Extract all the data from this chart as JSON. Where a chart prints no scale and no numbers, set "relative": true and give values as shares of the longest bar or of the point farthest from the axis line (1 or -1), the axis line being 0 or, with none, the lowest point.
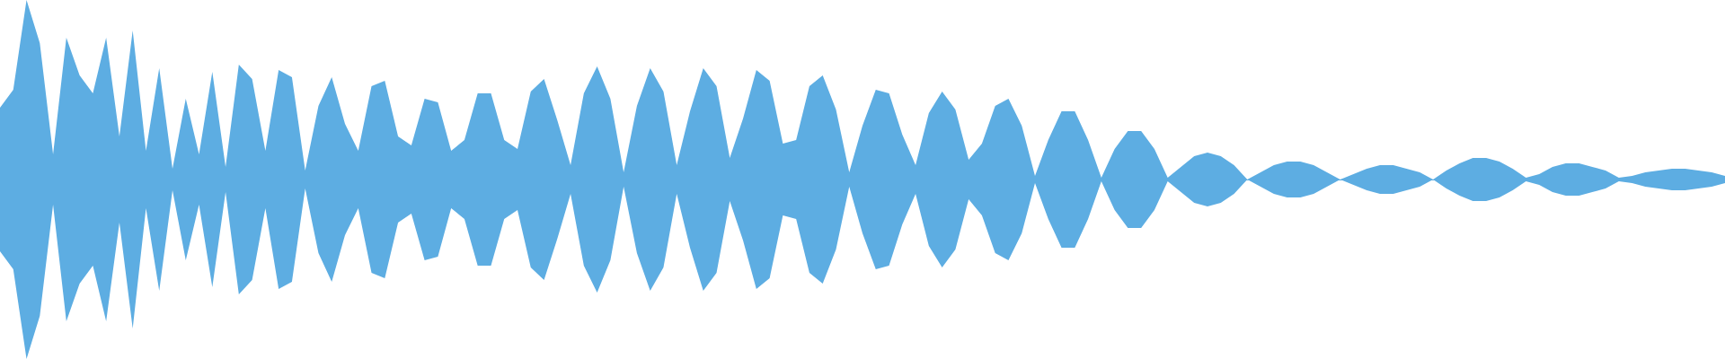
{
  "chart_data": {
    "type": "area",
    "relative": true,
    "ref_lines": [
      {
        "axis": "y",
        "value": 0,
        "color": "#5dade2"
      }
    ],
    "categories": [
      null,
      null,
      null,
      null,
      null,
      null,
      null,
      null,
      null,
      null,
      null,
      null,
      null,
      null,
      null,
      null,
      null,
      null,
      null,
      null,
      null,
      null,
      null,
      null,
      null,
      null,
      null,
      null,
      null,
      null,
      null,
      null,
      null,
      null,
      null,
      null,
      null,
      null,
      null,
      null,
      null,
      null,
      null,
      null,
      null,
      null,
      null,
      null,
      null,
      null,
      null,
      null,
      null,
      null,
      null,
      null,
      null,
      null,
      null,
      null,
      null,
      null,
      null,
      null,
      null,
      null,
      null,
      null,
      null,
      null,
      null,
      null,
      null,
      null,
      null,
      null,
      null,
      null,
      null,
      null,
      null,
      null,
      null,
      null,
      null,
      null,
      null,
      null,
      null,
      null,
      null,
      null,
      null,
      null,
      null,
      null,
      null,
      null,
      null,
      null,
      null,
      null,
      null,
      null,
      null,
      null,
      null,
      null,
      null,
      null,
      null,
      null,
      null,
      null,
      null,
      null,
      null,
      null,
      null,
      null,
      null,
      null,
      null,
      null,
      null,
      null,
      null,
      null,
      null,
      null,
      null
    ],
    "series": [
      {
        "color": "#5dade2",
        "values": [
          0.4,
          0.5,
          1,
          0.76,
          0.14,
          0.79,
          0.58,
          0.48,
          0.79,
          0.24,
          0.83,
          0.16,
          0.62,
          0.06,
          0.45,
          0.14,
          0.6,
          0.07,
          0.64,
          0.56,
          0.16,
          0.61,
          0.57,
          0.05,
          0.41,
          0.57,
          0.31,
          0.16,
          0.52,
          0.55,
          0.24,
          0.19,
          0.45,
          0.43,
          0.16,
          0.22,
          0.48,
          0.48,
          0.22,
          0.17,
          0.49,
          0.56,
          0.33,
          0.08,
          0.48,
          0.63,
          0.45,
          0.04,
          0.41,
          0.62,
          0.49,
          0.08,
          0.38,
          0.62,
          0.52,
          0.12,
          0.34,
          0.61,
          0.55,
          0.2,
          0.22,
          0.52,
          0.58,
          0.39,
          0.04,
          0.3,
          0.5,
          0.48,
          0.25,
          0.08,
          0.37,
          0.49,
          0.39,
          0.11,
          0.2,
          0.41,
          0.45,
          0.3,
          0.02,
          0.22,
          0.38,
          0.38,
          0.22,
          0.01,
          0.17,
          0.27,
          0.27,
          0.17,
          0.01,
          0.07,
          0.13,
          0.15,
          0.13,
          0.08,
          0,
          0.04,
          0.08,
          0.1,
          0.1,
          0.08,
          0.04,
          0,
          0.03,
          0.06,
          0.08,
          0.08,
          0.06,
          0.04,
          0,
          0.05,
          0.09,
          0.12,
          0.12,
          0.1,
          0.06,
          0.01,
          0.03,
          0.07,
          0.09,
          0.09,
          0.07,
          0.05,
          0.01,
          0.02,
          0.04,
          0.05,
          0.06,
          0.06,
          0.05,
          0.04,
          0.02
        ]
      },
      {
        "color": "#5dade2",
        "values": [
          -0.4,
          -0.5,
          -1,
          -0.76,
          -0.14,
          -0.79,
          -0.58,
          -0.48,
          -0.79,
          -0.24,
          -0.83,
          -0.16,
          -0.62,
          -0.06,
          -0.45,
          -0.14,
          -0.6,
          -0.07,
          -0.64,
          -0.56,
          -0.16,
          -0.61,
          -0.57,
          -0.05,
          -0.41,
          -0.57,
          -0.31,
          -0.16,
          -0.52,
          -0.55,
          -0.24,
          -0.19,
          -0.45,
          -0.43,
          -0.16,
          -0.22,
          -0.48,
          -0.48,
          -0.22,
          -0.17,
          -0.49,
          -0.56,
          -0.33,
          -0.08,
          -0.48,
          -0.63,
          -0.45,
          -0.04,
          -0.41,
          -0.62,
          -0.49,
          -0.08,
          -0.38,
          -0.62,
          -0.52,
          -0.12,
          -0.34,
          -0.61,
          -0.55,
          -0.2,
          -0.22,
          -0.52,
          -0.58,
          -0.39,
          -0.04,
          -0.3,
          -0.5,
          -0.48,
          -0.25,
          -0.08,
          -0.37,
          -0.49,
          -0.39,
          -0.11,
          -0.2,
          -0.41,
          -0.45,
          -0.3,
          -0.02,
          -0.22,
          -0.38,
          -0.38,
          -0.22,
          -0.01,
          -0.17,
          -0.27,
          -0.27,
          -0.17,
          -0.01,
          -0.07,
          -0.13,
          -0.15,
          -0.13,
          -0.08,
          0,
          -0.04,
          -0.08,
          -0.1,
          -0.1,
          -0.08,
          -0.04,
          0,
          -0.03,
          -0.06,
          -0.08,
          -0.08,
          -0.06,
          -0.04,
          0,
          -0.05,
          -0.09,
          -0.12,
          -0.12,
          -0.1,
          -0.06,
          -0.01,
          -0.03,
          -0.07,
          -0.09,
          -0.09,
          -0.07,
          -0.05,
          -0.01,
          -0.02,
          -0.04,
          -0.05,
          -0.06,
          -0.06,
          -0.05,
          -0.04,
          -0.02
        ]
      }
    ]
  }
}
